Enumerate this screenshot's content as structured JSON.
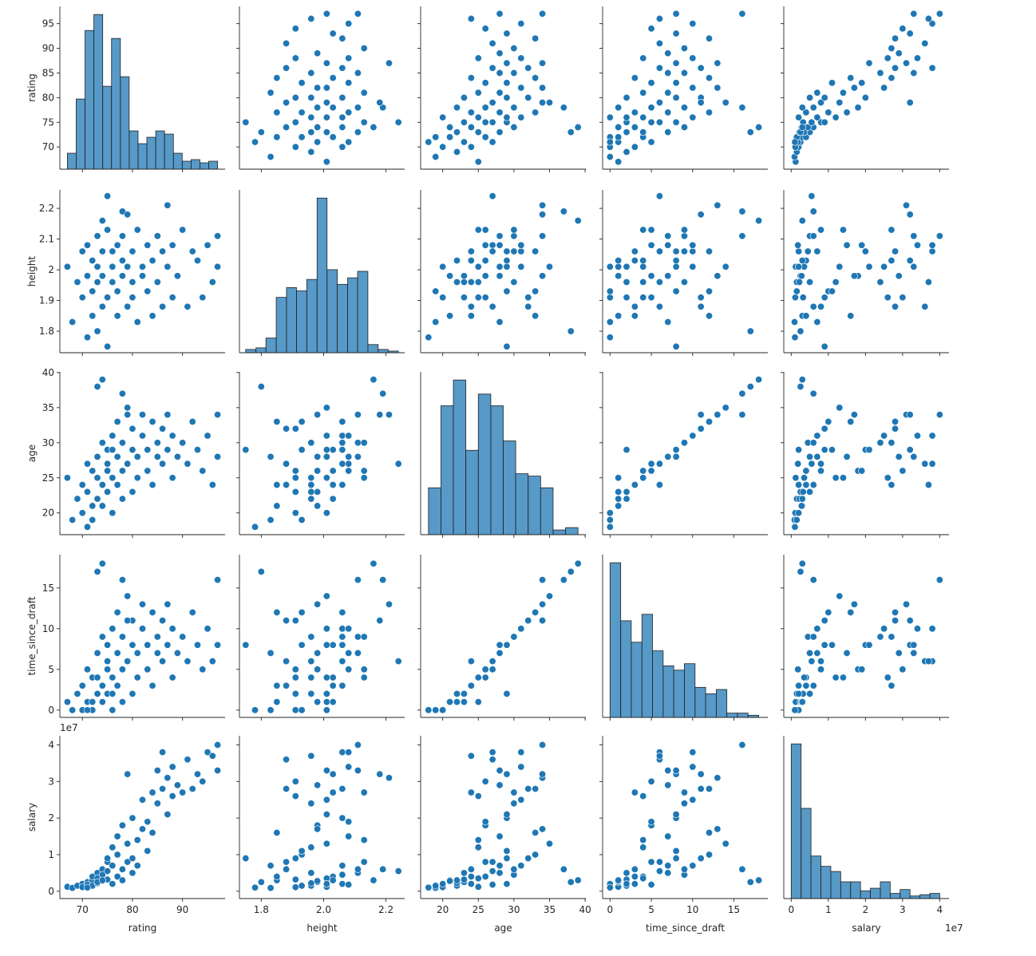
{
  "chart_data": {
    "type": "pairplot",
    "color": "#1f77b4",
    "variables": [
      {
        "name": "rating",
        "lim": [
          65.5,
          98.5
        ],
        "ticks": [
          70,
          75,
          80,
          85,
          90,
          95
        ],
        "label_ticks_x": [
          70,
          80,
          90
        ],
        "hist": {
          "bins": [
            67,
            68.76,
            70.53,
            72.29,
            74.06,
            75.82,
            77.59,
            79.35,
            81.12,
            82.88,
            84.65,
            86.41,
            88.18,
            89.94,
            91.71,
            93.47,
            95.24,
            97
          ],
          "counts": [
            10,
            44,
            87,
            97,
            52,
            82,
            58,
            24,
            16,
            20,
            24,
            22,
            10,
            5,
            6,
            4,
            5
          ]
        },
        "values": [
          67,
          68,
          69,
          70,
          70,
          71,
          71,
          72,
          72,
          72,
          73,
          73,
          73,
          74,
          74,
          74,
          75,
          75,
          75,
          75,
          76,
          76,
          76,
          77,
          77,
          77,
          78,
          78,
          78,
          79,
          79,
          80,
          80,
          80,
          81,
          81,
          82,
          82,
          83,
          83,
          84,
          84,
          85,
          85,
          86,
          86,
          87,
          87,
          88,
          88,
          89,
          90,
          91,
          92,
          93,
          94,
          95,
          96,
          97,
          97,
          73,
          74,
          78,
          71,
          76,
          79
        ]
      },
      {
        "name": "height",
        "lim": [
          1.73,
          2.26
        ],
        "ticks": [
          1.8,
          1.9,
          2.0,
          2.1,
          2.2
        ],
        "label_ticks_x": [
          1.8,
          {
            "value": 2,
            "label": "2.0"
          },
          2.2
        ],
        "hist": {
          "bins": [
            1.75,
            1.783,
            1.815,
            1.848,
            1.881,
            1.913,
            1.946,
            1.979,
            2.011,
            2.044,
            2.077,
            2.109,
            2.142,
            2.175,
            2.207,
            2.24
          ],
          "counts": [
            2,
            3,
            9,
            34,
            40,
            38,
            45,
            95,
            51,
            42,
            46,
            50,
            5,
            2,
            1
          ]
        },
        "values": [
          2.01,
          1.83,
          1.96,
          2.06,
          1.91,
          1.98,
          2.08,
          1.85,
          2.03,
          1.93,
          2.11,
          1.96,
          2.01,
          1.88,
          2.06,
          1.98,
          2.13,
          1.91,
          2.24,
          1.75,
          2.01,
          1.96,
          2.06,
          1.85,
          2.08,
          1.93,
          2.03,
          1.98,
          2.11,
          1.88,
          2.01,
          1.96,
          2.06,
          1.91,
          2.13,
          1.83,
          2.01,
          1.98,
          2.08,
          1.93,
          2.03,
          1.85,
          2.11,
          1.96,
          2.06,
          1.88,
          2.01,
          2.21,
          1.91,
          2.08,
          1.98,
          2.13,
          1.88,
          2.06,
          2.03,
          1.91,
          2.08,
          1.96,
          2.01,
          2.11,
          1.8,
          2.16,
          2.19,
          1.78,
          2.01,
          2.18
        ]
      },
      {
        "name": "age",
        "lim": [
          16.9,
          40.1
        ],
        "ticks": [
          20,
          25,
          30,
          35,
          40
        ],
        "label_ticks_x": [
          20,
          25,
          30,
          35,
          40
        ],
        "hist": {
          "bins": [
            18,
            19.75,
            21.5,
            23.25,
            25,
            26.75,
            28.5,
            30.25,
            32,
            33.75,
            35.5,
            37.25,
            39
          ],
          "counts": [
            20,
            55,
            66,
            36,
            60,
            55,
            40,
            26,
            25,
            20,
            2,
            3
          ]
        },
        "values": [
          25,
          19,
          22,
          24,
          20,
          23,
          27,
          21,
          26,
          19,
          28,
          22,
          25,
          24,
          30,
          21,
          26,
          23,
          27,
          29,
          20,
          25,
          31,
          24,
          28,
          33,
          22,
          26,
          30,
          27,
          35,
          23,
          29,
          32,
          25,
          28,
          31,
          34,
          26,
          29,
          24,
          33,
          28,
          30,
          27,
          32,
          29,
          34,
          25,
          31,
          28,
          30,
          27,
          33,
          29,
          26,
          31,
          24,
          28,
          34,
          38,
          39,
          37,
          18,
          29,
          34
        ]
      },
      {
        "name": "time_since_draft",
        "lim": [
          -0.9,
          19.1
        ],
        "ticks": [
          0,
          5,
          10,
          15
        ],
        "label_ticks_x": [
          0,
          5,
          10,
          15
        ],
        "hist": {
          "bins": [
            0,
            1.29,
            2.57,
            3.86,
            5.14,
            6.43,
            7.71,
            9,
            10.29,
            11.57,
            12.86,
            14.14,
            15.43,
            16.71,
            18
          ],
          "counts": [
            72,
            45,
            35,
            48,
            31,
            24,
            22,
            25,
            14,
            11,
            13,
            2,
            2,
            1
          ]
        },
        "values": [
          1,
          0,
          2,
          3,
          0,
          1,
          5,
          1,
          4,
          0,
          7,
          2,
          4,
          3,
          9,
          1,
          5,
          2,
          6,
          8,
          0,
          4,
          10,
          3,
          7,
          12,
          1,
          5,
          9,
          6,
          14,
          2,
          8,
          11,
          4,
          7,
          10,
          13,
          5,
          8,
          3,
          12,
          7,
          9,
          6,
          11,
          8,
          13,
          4,
          10,
          7,
          9,
          6,
          12,
          8,
          5,
          10,
          6,
          8,
          16,
          17,
          18,
          16,
          0,
          2,
          11
        ]
      },
      {
        "name": "salary",
        "lim": [
          -2000000,
          42500000
        ],
        "offset_label": "1e7",
        "ticks": [
          {
            "value": 0,
            "label": "0"
          },
          {
            "value": 10000000,
            "label": "1"
          },
          {
            "value": 20000000,
            "label": "2"
          },
          {
            "value": 30000000,
            "label": "3"
          },
          {
            "value": 40000000,
            "label": "4"
          }
        ],
        "label_ticks_x": [
          {
            "value": 0,
            "label": "0"
          },
          {
            "value": 10000000,
            "label": "1"
          },
          {
            "value": 20000000,
            "label": "2"
          },
          {
            "value": 30000000,
            "label": "3"
          },
          {
            "value": 40000000,
            "label": "4"
          }
        ],
        "hist": {
          "bins": [
            0,
            2666667,
            5333333,
            8000000,
            10666667,
            13333333,
            16000000,
            18666667,
            21333333,
            24000000,
            26666667,
            29333333,
            32000000,
            34666667,
            37333333,
            40000000
          ],
          "counts": [
            120,
            70,
            33,
            25,
            21,
            13,
            13,
            6,
            8,
            13,
            4,
            7,
            2,
            3,
            4
          ]
        },
        "values": [
          1200000,
          900000,
          1500000,
          2000000,
          1100000,
          2500000,
          1800000,
          3000000,
          4000000,
          1500000,
          5000000,
          2200000,
          3500000,
          6000000,
          4500000,
          2800000,
          8000000,
          3200000,
          5500000,
          9000000,
          2000000,
          12000000,
          7000000,
          4000000,
          15000000,
          10000000,
          3000000,
          18000000,
          6000000,
          8000000,
          13000000,
          5000000,
          20000000,
          9000000,
          14000000,
          7000000,
          25000000,
          17000000,
          19000000,
          11000000,
          27000000,
          16000000,
          33000000,
          24000000,
          38000000,
          28000000,
          21000000,
          31000000,
          26000000,
          34000000,
          29000000,
          27000000,
          36000000,
          28000000,
          32000000,
          30000000,
          38000000,
          37000000,
          33000000,
          40000000,
          2500000,
          3000000,
          6000000,
          1000000,
          2000000,
          32000000
        ]
      }
    ]
  }
}
